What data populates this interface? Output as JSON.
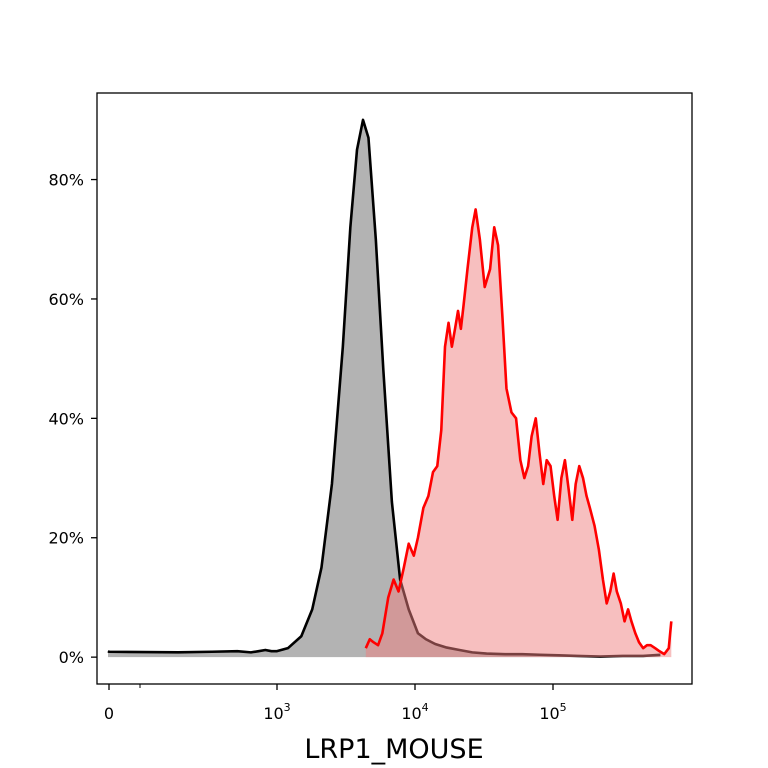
{
  "chart_data": {
    "type": "area",
    "title": "",
    "xlabel": "LRP1_MOUSE",
    "ylabel": "",
    "xscale": "symlog",
    "ylim": [
      -0.045,
      0.945
    ],
    "grid": false,
    "legend": "none",
    "x_ticks": [
      {
        "value": 0,
        "label": "0"
      },
      {
        "value": 1000,
        "label": "10",
        "exp": "3"
      },
      {
        "value": 10000,
        "label": "10",
        "exp": "4"
      },
      {
        "value": 100000,
        "label": "10",
        "exp": "5"
      }
    ],
    "y_ticks": [
      {
        "value": 0,
        "label": "0%"
      },
      {
        "value": 0.2,
        "label": "20%"
      },
      {
        "value": 0.4,
        "label": "40%"
      },
      {
        "value": 0.6,
        "label": "60%"
      },
      {
        "value": 0.8,
        "label": "80%"
      }
    ],
    "series": [
      {
        "color": "#000000",
        "fill": "#808080",
        "fill_opacity": 0.6,
        "points": [
          [
            -50,
            0.01
          ],
          [
            0,
            0.009
          ],
          [
            100,
            0.008
          ],
          [
            250,
            0.009
          ],
          [
            450,
            0.01
          ],
          [
            600,
            0.008
          ],
          [
            700,
            0.01
          ],
          [
            800,
            0.012
          ],
          [
            900,
            0.01
          ],
          [
            1000,
            0.01
          ],
          [
            1200,
            0.015
          ],
          [
            1500,
            0.035
          ],
          [
            1800,
            0.08
          ],
          [
            2100,
            0.15
          ],
          [
            2500,
            0.29
          ],
          [
            3000,
            0.52
          ],
          [
            3400,
            0.72
          ],
          [
            3800,
            0.85
          ],
          [
            4200,
            0.9
          ],
          [
            4600,
            0.87
          ],
          [
            5200,
            0.7
          ],
          [
            5900,
            0.48
          ],
          [
            6800,
            0.26
          ],
          [
            7800,
            0.13
          ],
          [
            9000,
            0.08
          ],
          [
            10500,
            0.04
          ],
          [
            12000,
            0.03
          ],
          [
            14000,
            0.022
          ],
          [
            17000,
            0.016
          ],
          [
            21000,
            0.012
          ],
          [
            26000,
            0.008
          ],
          [
            33000,
            0.006
          ],
          [
            45000,
            0.005
          ],
          [
            60000,
            0.005
          ],
          [
            80000,
            0.004
          ],
          [
            110000,
            0.003
          ],
          [
            150000,
            0.002
          ],
          [
            220000,
            0.001
          ],
          [
            320000,
            0.002
          ],
          [
            450000,
            0.002
          ],
          [
            600000,
            0.004
          ]
        ]
      },
      {
        "color": "#ff0000",
        "fill": "#f08080",
        "fill_opacity": 0.5,
        "points": [
          [
            4400,
            0.015
          ],
          [
            4700,
            0.03
          ],
          [
            5000,
            0.025
          ],
          [
            5400,
            0.02
          ],
          [
            5800,
            0.04
          ],
          [
            6400,
            0.1
          ],
          [
            7000,
            0.13
          ],
          [
            7600,
            0.11
          ],
          [
            8300,
            0.15
          ],
          [
            9000,
            0.19
          ],
          [
            9800,
            0.17
          ],
          [
            10500,
            0.2
          ],
          [
            11500,
            0.25
          ],
          [
            12500,
            0.27
          ],
          [
            13500,
            0.31
          ],
          [
            14500,
            0.32
          ],
          [
            15500,
            0.38
          ],
          [
            16500,
            0.52
          ],
          [
            17500,
            0.56
          ],
          [
            18500,
            0.52
          ],
          [
            19500,
            0.55
          ],
          [
            20500,
            0.58
          ],
          [
            21500,
            0.55
          ],
          [
            22500,
            0.59
          ],
          [
            24000,
            0.65
          ],
          [
            26000,
            0.72
          ],
          [
            27500,
            0.75
          ],
          [
            29500,
            0.7
          ],
          [
            32000,
            0.62
          ],
          [
            35000,
            0.65
          ],
          [
            37500,
            0.72
          ],
          [
            40000,
            0.69
          ],
          [
            43000,
            0.57
          ],
          [
            46000,
            0.45
          ],
          [
            50000,
            0.41
          ],
          [
            54000,
            0.4
          ],
          [
            58000,
            0.33
          ],
          [
            62000,
            0.3
          ],
          [
            66000,
            0.32
          ],
          [
            70000,
            0.37
          ],
          [
            75000,
            0.4
          ],
          [
            80000,
            0.34
          ],
          [
            85000,
            0.29
          ],
          [
            90000,
            0.33
          ],
          [
            96000,
            0.32
          ],
          [
            102000,
            0.27
          ],
          [
            108000,
            0.23
          ],
          [
            115000,
            0.3
          ],
          [
            122000,
            0.33
          ],
          [
            130000,
            0.28
          ],
          [
            138000,
            0.23
          ],
          [
            146000,
            0.29
          ],
          [
            155000,
            0.32
          ],
          [
            165000,
            0.3
          ],
          [
            175000,
            0.27
          ],
          [
            185000,
            0.25
          ],
          [
            200000,
            0.22
          ],
          [
            215000,
            0.18
          ],
          [
            230000,
            0.13
          ],
          [
            245000,
            0.09
          ],
          [
            260000,
            0.11
          ],
          [
            275000,
            0.14
          ],
          [
            290000,
            0.11
          ],
          [
            310000,
            0.09
          ],
          [
            330000,
            0.06
          ],
          [
            350000,
            0.08
          ],
          [
            370000,
            0.06
          ],
          [
            395000,
            0.04
          ],
          [
            420000,
            0.025
          ],
          [
            450000,
            0.015
          ],
          [
            480000,
            0.02
          ],
          [
            510000,
            0.02
          ],
          [
            550000,
            0.015
          ],
          [
            590000,
            0.01
          ],
          [
            640000,
            0.005
          ],
          [
            690000,
            0.015
          ],
          [
            720000,
            0.06
          ]
        ]
      }
    ]
  }
}
